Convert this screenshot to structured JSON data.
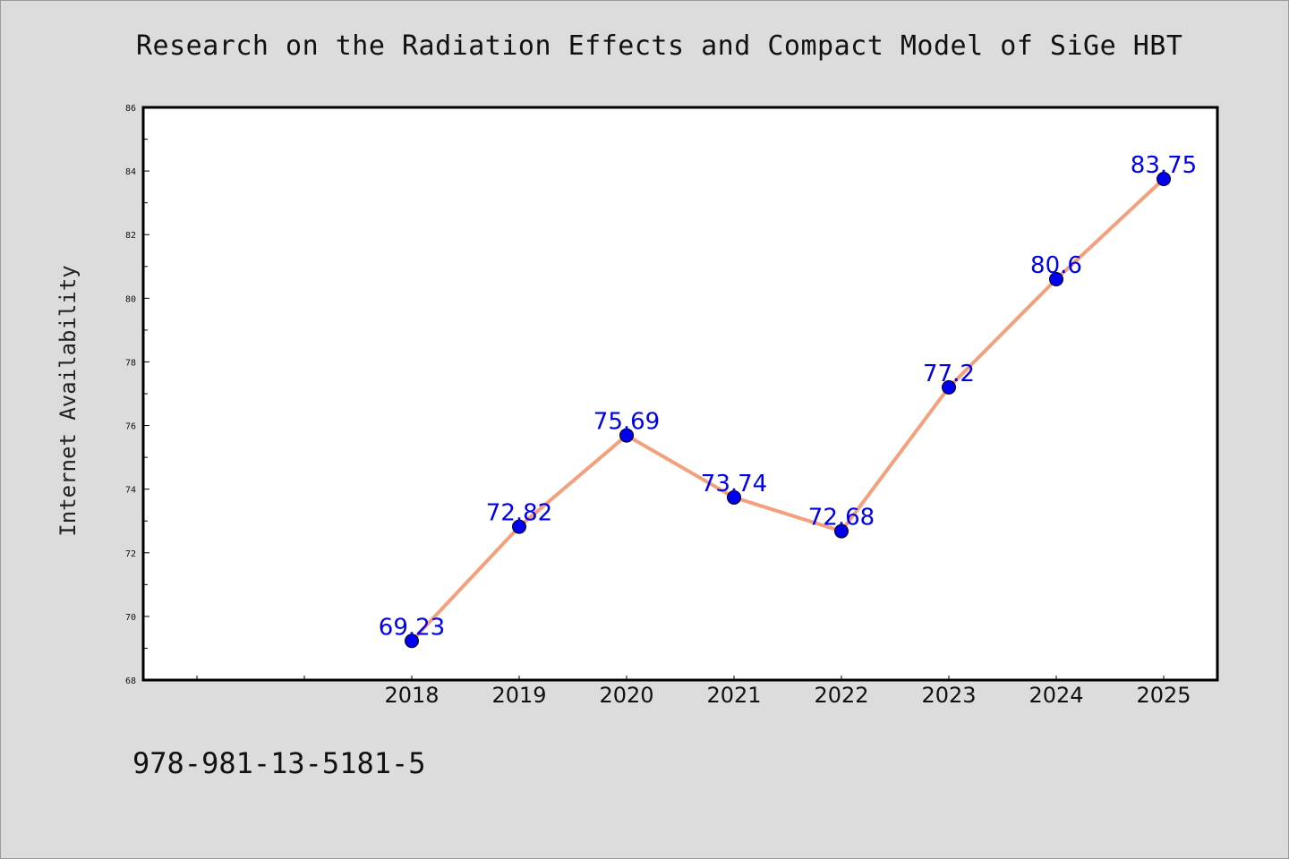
{
  "page": {
    "title": "Research on the Radiation Effects and Compact Model of SiGe HBT",
    "footer": "978-981-13-5181-5"
  },
  "chart_data": {
    "type": "line",
    "title": "Research on the Radiation Effects and Compact Model of SiGe HBT",
    "xlabel": "",
    "ylabel": "Internet Availability",
    "categories": [
      "2018",
      "2019",
      "2020",
      "2021",
      "2022",
      "2023",
      "2024",
      "2025"
    ],
    "series": [
      {
        "values": [
          69.23,
          72.82,
          75.69,
          73.74,
          72.68,
          77.2,
          80.6,
          83.75
        ],
        "labels": [
          "69.23",
          "72.82",
          "75.69",
          "73.74",
          "72.68",
          "77.2",
          "80.6",
          "83.75"
        ]
      }
    ],
    "ylim": [
      68,
      86
    ],
    "yticks": [
      "68",
      "70",
      "72",
      "74",
      "76",
      "78",
      "80",
      "82",
      "84",
      "86"
    ],
    "x_slots": 10,
    "x_first_category_slot": 2,
    "grid": false,
    "legend": "none",
    "colors": {
      "line": "#f4a07c",
      "marker": "#0000ee",
      "label": "#0000ee",
      "plot_bg": "#ffffff",
      "page_bg": "#dcdcdc"
    }
  }
}
